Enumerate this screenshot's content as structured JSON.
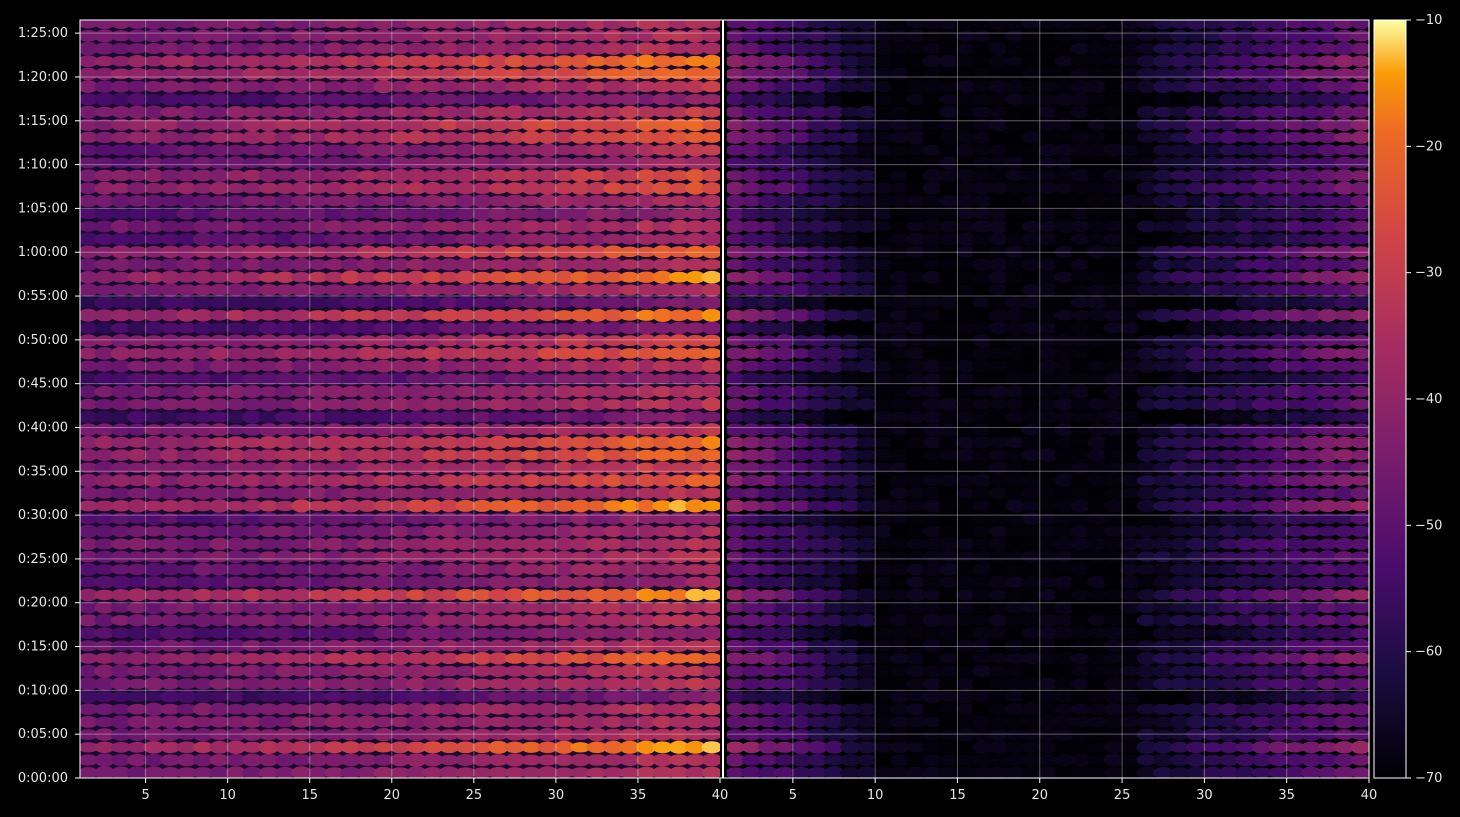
{
  "chart_data": {
    "type": "heatmap",
    "panels": [
      {
        "name": "",
        "x_ticks": [
          "5",
          "10",
          "15",
          "20",
          "25",
          "30",
          "35",
          "40"
        ],
        "xlim": [
          1,
          40
        ]
      },
      {
        "name": "",
        "x_ticks": [
          "5",
          "10",
          "15",
          "20",
          "25",
          "30",
          "35",
          "40"
        ],
        "xlim": [
          1,
          40
        ]
      }
    ],
    "y_ticks": [
      "0:00:00",
      "0:05:00",
      "0:10:00",
      "0:15:00",
      "0:20:00",
      "0:25:00",
      "0:30:00",
      "0:35:00",
      "0:40:00",
      "0:45:00",
      "0:50:00",
      "0:55:00",
      "1:00:00",
      "1:05:00",
      "1:10:00",
      "1:15:00",
      "1:20:00",
      "1:25:00"
    ],
    "ylim_minutes": [
      0,
      86.5
    ],
    "grid": true,
    "colorbar": {
      "ticks": [
        "−10",
        "−20",
        "−30",
        "−40",
        "−50",
        "−60",
        "−70"
      ],
      "range": [
        -70,
        -10
      ],
      "colormap": "inferno"
    },
    "description_rows": {
      "bright_rows_minutes": [
        3.5,
        14,
        21,
        31,
        34.5,
        36.5,
        38,
        49,
        53,
        57,
        60.5,
        68,
        72.5,
        75,
        80,
        82
      ],
      "dark_gap_minutes": [
        9,
        16,
        23,
        29,
        41.5,
        46,
        51,
        54.5,
        62,
        65,
        71,
        77
      ]
    }
  }
}
